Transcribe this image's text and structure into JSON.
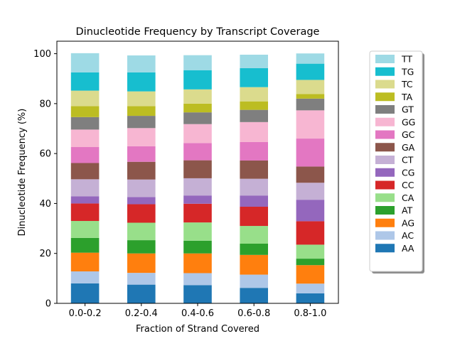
{
  "chart_data": {
    "type": "bar",
    "stacked": true,
    "title": "Dinucleotide Frequency by Transcript Coverage",
    "xlabel": "Fraction of Strand Covered",
    "ylabel": "Dinucleotide Frequency (%)",
    "ylim": [
      0,
      105
    ],
    "yticks": [
      0,
      20,
      40,
      60,
      80,
      100
    ],
    "categories": [
      "0.0-0.2",
      "0.2-0.4",
      "0.4-0.6",
      "0.6-0.8",
      "0.8-1.0"
    ],
    "legend_position": "right, outside plot",
    "grid": false,
    "series": [
      {
        "name": "AA",
        "color": "#1f77b4",
        "values": [
          8.0,
          7.5,
          7.3,
          6.2,
          4.0
        ]
      },
      {
        "name": "AC",
        "color": "#aec7e8",
        "values": [
          4.8,
          4.7,
          4.8,
          5.3,
          3.9
        ]
      },
      {
        "name": "AG",
        "color": "#ff7f0e",
        "values": [
          7.5,
          7.8,
          7.9,
          7.9,
          7.4
        ]
      },
      {
        "name": "AT",
        "color": "#2ca02c",
        "values": [
          5.9,
          5.3,
          5.1,
          4.5,
          2.6
        ]
      },
      {
        "name": "CA",
        "color": "#98df8a",
        "values": [
          6.8,
          7.0,
          7.3,
          7.1,
          5.6
        ]
      },
      {
        "name": "CC",
        "color": "#d62728",
        "values": [
          7.0,
          7.4,
          7.5,
          7.7,
          9.4
        ]
      },
      {
        "name": "CG",
        "color": "#9467bd",
        "values": [
          2.9,
          2.9,
          3.3,
          4.5,
          8.6
        ]
      },
      {
        "name": "CT",
        "color": "#c5b0d5",
        "values": [
          6.8,
          7.0,
          6.9,
          6.7,
          6.8
        ]
      },
      {
        "name": "GA",
        "color": "#8c564b",
        "values": [
          6.5,
          7.1,
          7.2,
          7.3,
          6.5
        ]
      },
      {
        "name": "GC",
        "color": "#e377c2",
        "values": [
          6.4,
          6.2,
          6.9,
          7.4,
          11.2
        ]
      },
      {
        "name": "GG",
        "color": "#f7b6d2",
        "values": [
          7.0,
          7.3,
          7.6,
          8.0,
          11.3
        ]
      },
      {
        "name": "GT",
        "color": "#7f7f7f",
        "values": [
          5.0,
          4.9,
          4.7,
          4.9,
          4.7
        ]
      },
      {
        "name": "TA",
        "color": "#bcbd22",
        "values": [
          4.4,
          3.9,
          3.5,
          3.4,
          1.8
        ]
      },
      {
        "name": "TC",
        "color": "#dbdb8d",
        "values": [
          6.2,
          5.9,
          5.7,
          5.7,
          5.7
        ]
      },
      {
        "name": "TG",
        "color": "#17becf",
        "values": [
          7.3,
          7.6,
          7.7,
          7.6,
          6.5
        ]
      },
      {
        "name": "TT",
        "color": "#9edae5",
        "values": [
          7.7,
          6.8,
          6.0,
          5.4,
          4.1
        ]
      }
    ]
  }
}
